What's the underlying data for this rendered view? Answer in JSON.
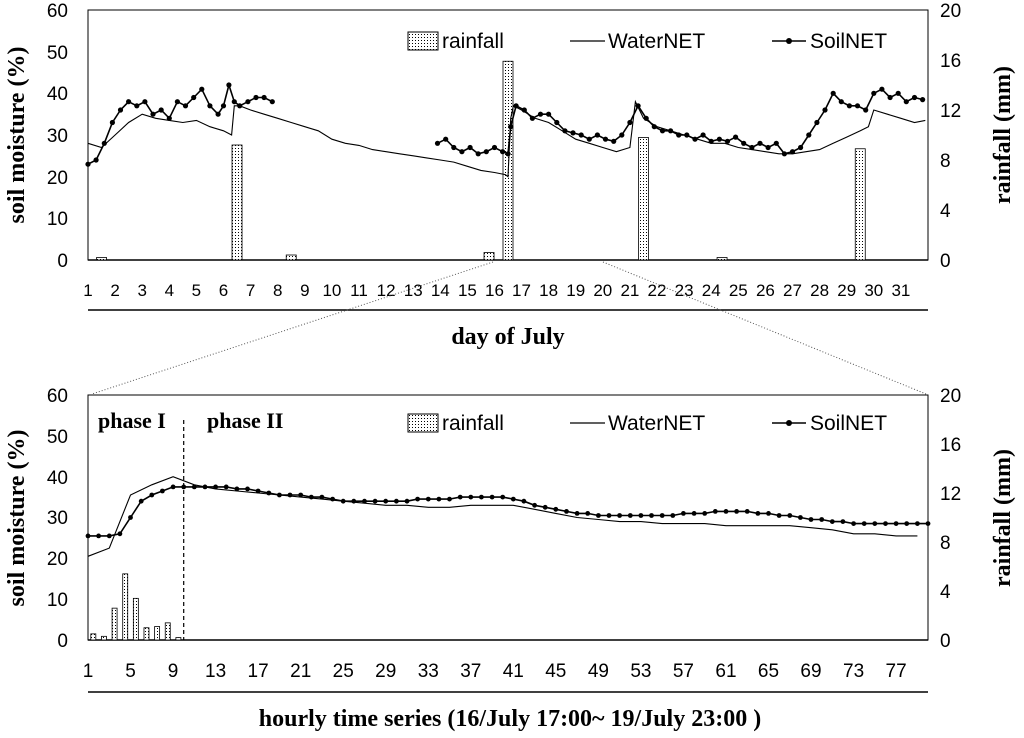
{
  "colors": {
    "ink": "#000000",
    "bar_fill": "#ffffff"
  },
  "chart_data": [
    {
      "type": "bar-line",
      "panel": "top",
      "xlabel": "day of July",
      "ylabel": "soil moisture (%)",
      "y2label": "rainfall (mm)",
      "ylim": [
        0,
        60
      ],
      "y2lim": [
        0,
        20
      ],
      "y_ticks": [
        "0",
        "10",
        "20",
        "30",
        "40",
        "50",
        "60"
      ],
      "y2_ticks": [
        "0",
        "4",
        "8",
        "12",
        "16",
        "20"
      ],
      "x_ticks": [
        "1",
        "2",
        "3",
        "4",
        "5",
        "6",
        "7",
        "8",
        "9",
        "10",
        "11",
        "12",
        "13",
        "14",
        "15",
        "16",
        "17",
        "18",
        "19",
        "20",
        "21",
        "22",
        "23",
        "24",
        "25",
        "26",
        "27",
        "28",
        "29",
        "30",
        "31"
      ],
      "xlim": [
        1,
        32
      ],
      "legend": {
        "position": "top-right",
        "labels": [
          "rainfall",
          "WaterNET",
          "SoilNET"
        ]
      },
      "rainfall": {
        "day": [
          1.5,
          6.5,
          8.5,
          15.8,
          16.5,
          21.5,
          24.4,
          29.5
        ],
        "value": [
          0.2,
          9.2,
          0.4,
          0.6,
          15.9,
          9.8,
          0.2,
          8.9
        ]
      },
      "waternet": {
        "day": [
          1,
          1.5,
          2,
          2.5,
          3,
          3.5,
          4,
          4.5,
          5,
          5.5,
          6,
          6.3,
          6.4,
          6.6,
          7,
          7.5,
          8,
          8.5,
          9,
          9.5,
          10,
          10.5,
          11,
          11.5,
          12,
          12.5,
          13,
          13.5,
          14,
          14.5,
          15,
          15.5,
          16,
          16.4,
          16.5,
          16.6,
          16.7,
          17,
          17.5,
          18,
          18.5,
          19,
          19.5,
          20,
          20.5,
          21,
          21.2,
          21.5,
          22,
          22.5,
          23,
          23.5,
          24,
          24.5,
          25,
          25.5,
          26,
          26.5,
          27,
          27.5,
          28,
          28.5,
          29,
          29.5,
          29.8,
          30,
          30.5,
          31,
          31.5,
          31.9
        ],
        "value": [
          28,
          27,
          30,
          33,
          35,
          34,
          33.5,
          33,
          33.5,
          32,
          31,
          30,
          37,
          37,
          36,
          35,
          34,
          33,
          32,
          31,
          29,
          28,
          27.5,
          26.5,
          26,
          25.5,
          25,
          24.5,
          24,
          23.5,
          22.5,
          21.5,
          21,
          20.5,
          20,
          34,
          37,
          36,
          34,
          33,
          31,
          29,
          28,
          27,
          26,
          27,
          38,
          34,
          32,
          31,
          30,
          29,
          28,
          28,
          27,
          26.5,
          26,
          25.5,
          25.5,
          26,
          26.5,
          28,
          29.5,
          31,
          32,
          36,
          35,
          34,
          33,
          33.5
        ]
      },
      "soilnet": {
        "segments": [
          {
            "day": [
              1,
              1.3,
              1.6,
              1.9,
              2.2,
              2.5,
              2.8,
              3.1,
              3.4,
              3.7,
              4,
              4.3,
              4.6,
              4.9,
              5.2,
              5.5,
              5.8,
              6,
              6.2,
              6.4,
              6.6,
              6.9,
              7.2,
              7.5,
              7.8
            ],
            "value": [
              23,
              24,
              28,
              33,
              36,
              38,
              37,
              38,
              35,
              36,
              34,
              38,
              37,
              39,
              41,
              37,
              35,
              37,
              42,
              38,
              37,
              38,
              39,
              39,
              38
            ]
          },
          {
            "day": [
              13.9,
              14.2,
              14.5,
              14.8,
              15.1,
              15.4,
              15.7,
              16,
              16.3,
              16.5,
              16.6,
              16.8,
              17.1,
              17.4,
              17.7,
              18,
              18.3,
              18.6,
              18.9,
              19.2,
              19.5,
              19.8,
              20.1,
              20.4,
              20.7,
              21,
              21.3,
              21.6,
              21.9,
              22.2,
              22.5,
              22.8,
              23.1,
              23.4,
              23.7,
              24,
              24.3,
              24.6,
              24.9,
              25.2,
              25.5,
              25.8,
              26.1,
              26.4,
              26.7,
              27,
              27.3,
              27.6,
              27.9,
              28.2,
              28.5,
              28.8,
              29.1,
              29.4,
              29.7,
              30,
              30.3,
              30.6,
              30.9,
              31.2,
              31.5,
              31.8
            ],
            "value": [
              28,
              29,
              27,
              26,
              27,
              25.5,
              26,
              27,
              26,
              25.5,
              32,
              37,
              36,
              34,
              35,
              35,
              33,
              31,
              30.5,
              30,
              29,
              30,
              29,
              28.5,
              30,
              33,
              37,
              34,
              32,
              31,
              31,
              30,
              30,
              29,
              30,
              28.5,
              29,
              28.5,
              29.5,
              28,
              27,
              28,
              27,
              28,
              25.5,
              26,
              27,
              30,
              33,
              36,
              40,
              38,
              37,
              37,
              36,
              40,
              41,
              39,
              40,
              38,
              39,
              38.5
            ]
          }
        ]
      }
    },
    {
      "type": "bar-line",
      "panel": "bottom",
      "xlabel": "hourly time series (16/July 17:00~ 19/July 23:00 )",
      "ylabel": "soil moisture (%)",
      "y2label": "rainfall (mm)",
      "ylim": [
        0,
        60
      ],
      "y2lim": [
        0,
        20
      ],
      "y_ticks": [
        "0",
        "10",
        "20",
        "30",
        "40",
        "50",
        "60"
      ],
      "y2_ticks": [
        "0",
        "4",
        "8",
        "12",
        "16",
        "20"
      ],
      "x_ticks": [
        "1",
        "5",
        "9",
        "13",
        "17",
        "21",
        "25",
        "29",
        "33",
        "37",
        "41",
        "45",
        "49",
        "53",
        "57",
        "61",
        "65",
        "69",
        "73",
        "77"
      ],
      "xlim": [
        1,
        80
      ],
      "legend": {
        "position": "top-right",
        "labels": [
          "rainfall",
          "WaterNET",
          "SoilNET"
        ]
      },
      "phase_labels": [
        "phase I",
        "phase II"
      ],
      "phase_divider_hour": 10,
      "rainfall": {
        "hour": [
          1.5,
          2.5,
          3.5,
          4.5,
          5.5,
          6.5,
          7.5,
          8.5,
          9.5
        ],
        "value": [
          0.5,
          0.3,
          2.6,
          5.4,
          3.4,
          1.0,
          1.1,
          1.4,
          0.2
        ]
      },
      "waternet": {
        "hour": [
          1,
          3,
          5,
          7,
          9,
          11,
          13,
          15,
          17,
          19,
          21,
          23,
          25,
          27,
          29,
          31,
          33,
          35,
          37,
          39,
          41,
          43,
          45,
          47,
          49,
          51,
          53,
          55,
          57,
          59,
          61,
          63,
          65,
          67,
          69,
          71,
          73,
          75,
          77,
          79
        ],
        "value": [
          20.5,
          22.5,
          35.5,
          38,
          40,
          38,
          37,
          36.5,
          36,
          35.5,
          35,
          34.5,
          34,
          33.5,
          33,
          33,
          32.5,
          32.5,
          33,
          33,
          33,
          32,
          31,
          30,
          29.5,
          29,
          29,
          28.5,
          28.5,
          28.5,
          28,
          28,
          28,
          28,
          27.5,
          27,
          26,
          26,
          25.5,
          25.5
        ]
      },
      "soilnet": {
        "hour": [
          1,
          2,
          3,
          4,
          5,
          6,
          7,
          8,
          9,
          10,
          11,
          12,
          13,
          14,
          15,
          16,
          17,
          18,
          19,
          20,
          21,
          22,
          23,
          24,
          25,
          26,
          27,
          28,
          29,
          30,
          31,
          32,
          33,
          34,
          35,
          36,
          37,
          38,
          39,
          40,
          41,
          42,
          43,
          44,
          45,
          46,
          47,
          48,
          49,
          50,
          51,
          52,
          53,
          54,
          55,
          56,
          57,
          58,
          59,
          60,
          61,
          62,
          63,
          64,
          65,
          66,
          67,
          68,
          69,
          70,
          71,
          72,
          73,
          74,
          75,
          76,
          77,
          78,
          79,
          80
        ],
        "value": [
          25.5,
          25.5,
          25.5,
          26,
          30,
          34,
          35.5,
          36.5,
          37.5,
          37.5,
          37.5,
          37.5,
          37.5,
          37.5,
          37,
          37,
          36.5,
          36,
          35.5,
          35.5,
          35.5,
          35,
          35,
          34.5,
          34,
          34,
          34,
          34,
          34,
          34,
          34,
          34.5,
          34.5,
          34.5,
          34.5,
          35,
          35,
          35,
          35,
          35,
          34.5,
          34,
          33,
          32.5,
          32,
          31.5,
          31,
          31,
          30.5,
          30.5,
          30.5,
          30.5,
          30.5,
          30.5,
          30.5,
          30.5,
          31,
          31,
          31,
          31.5,
          31.5,
          31.5,
          31.5,
          31,
          31,
          30.5,
          30.5,
          30,
          29.5,
          29.5,
          29,
          29,
          28.5,
          28.5,
          28.5,
          28.5,
          28.5,
          28.5,
          28.5,
          28.5
        ]
      }
    }
  ]
}
